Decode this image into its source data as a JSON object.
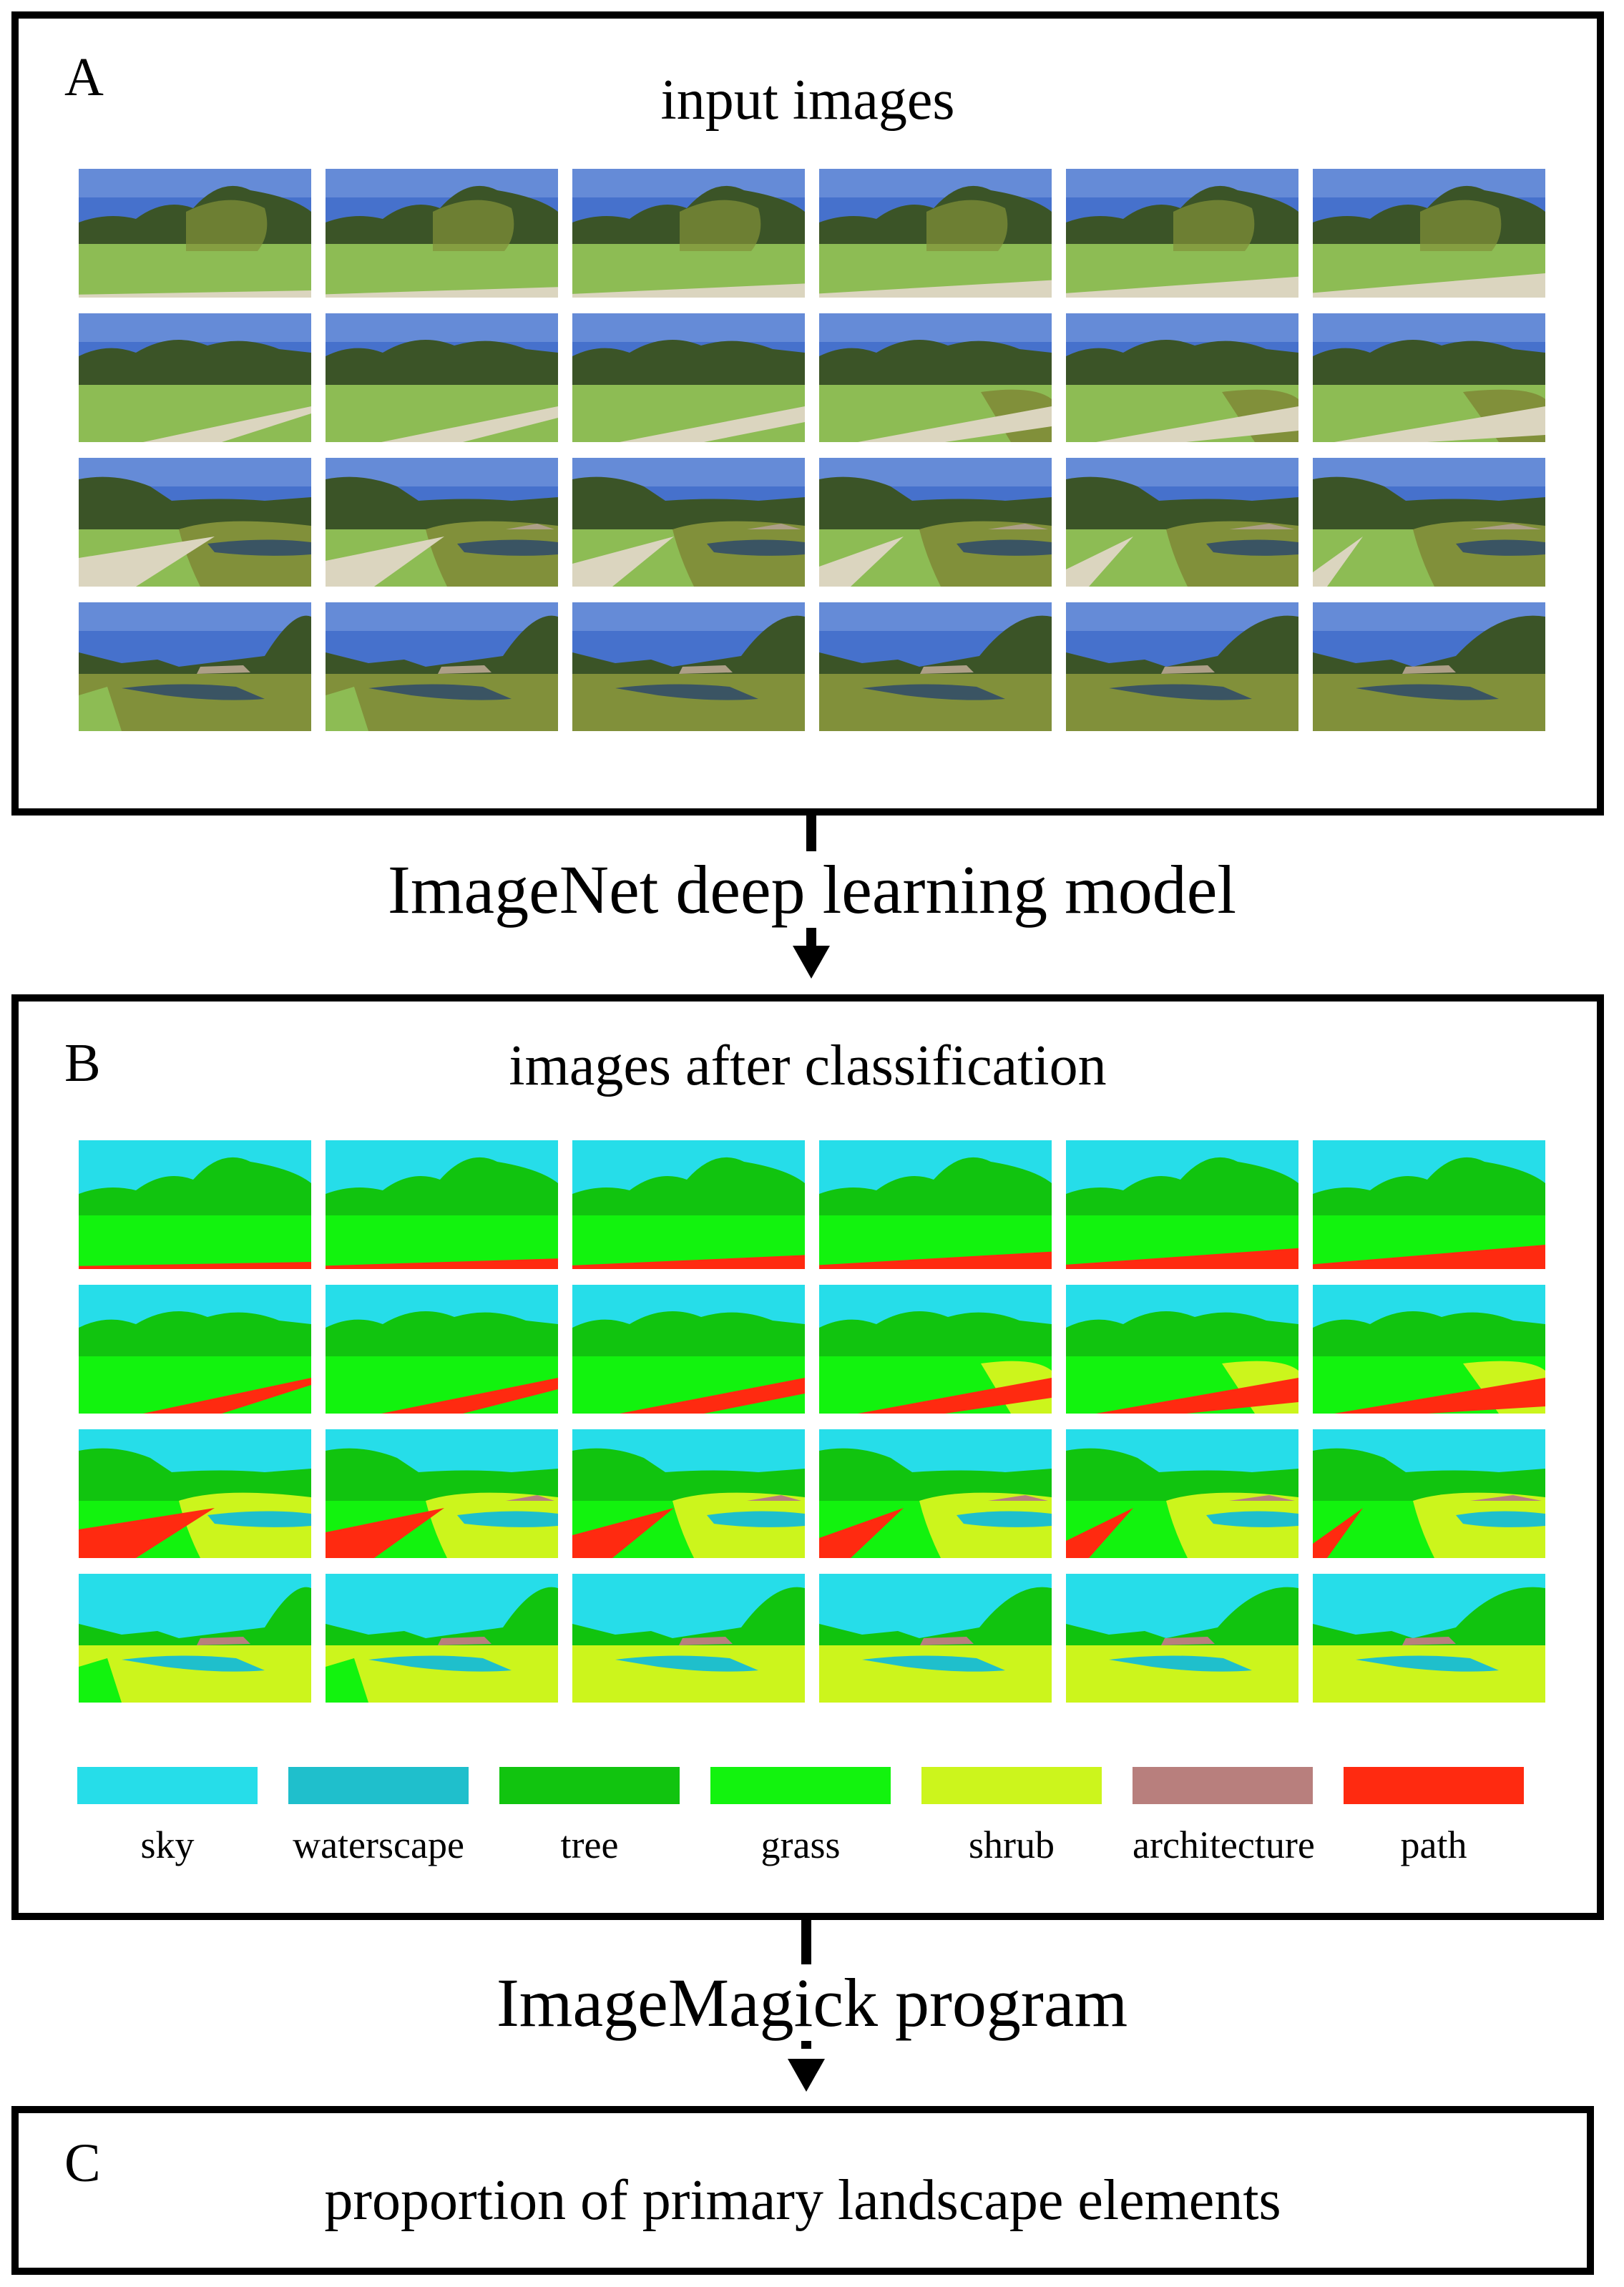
{
  "panels": {
    "a": {
      "letter": "A",
      "title": "input images"
    },
    "b": {
      "letter": "B",
      "title": "images after classification"
    },
    "c": {
      "letter": "C",
      "title": "proportion of primary landscape elements"
    }
  },
  "steps": {
    "model": "ImageNet deep learning model",
    "program": "ImageMagick program"
  },
  "legend": [
    {
      "label": "sky",
      "color": "#26dde9"
    },
    {
      "label": "waterscape",
      "color": "#1fbfcc"
    },
    {
      "label": "tree",
      "color": "#11c40f"
    },
    {
      "label": "grass",
      "color": "#12f30e"
    },
    {
      "label": "shrub",
      "color": "#ccf51c"
    },
    {
      "label": "architecture",
      "color": "#b87f7d"
    },
    {
      "label": "path",
      "color": "#ff2a10"
    }
  ],
  "photo_colors": {
    "sky": "#3b69c9",
    "sky_light": "#9ab8ea",
    "tree": "#2f4a1a",
    "shrub": "#7a8a2e",
    "grass": "#86b84a",
    "path": "#d9d3bb",
    "water": "#2e4a5a",
    "building": "#a89a80"
  }
}
